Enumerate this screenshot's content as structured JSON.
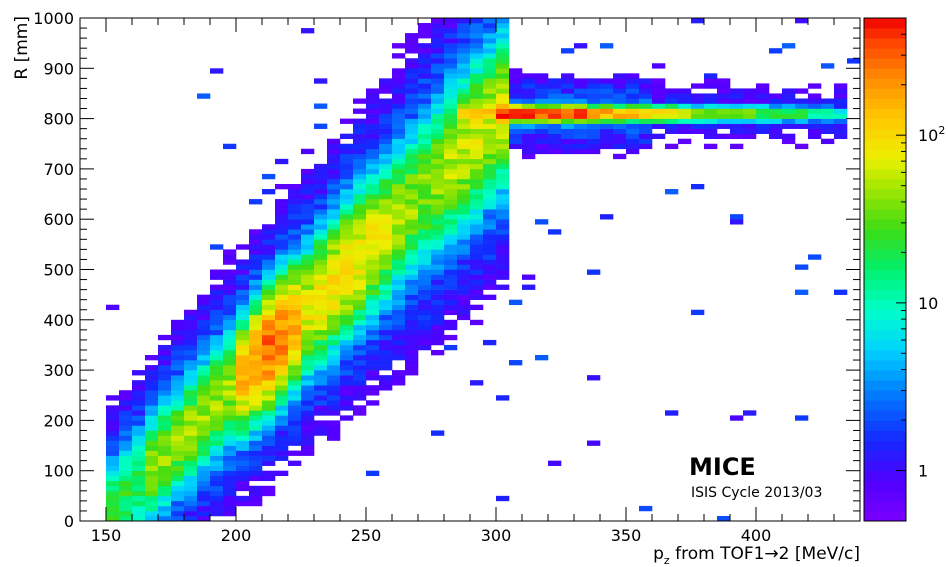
{
  "chart_data": {
    "type": "heatmap",
    "title": "",
    "xlabel": "p_z from TOF1→2 [MeV/c]",
    "ylabel": "R [mm]",
    "xlim": [
      140,
      440
    ],
    "ylim": [
      0,
      1000
    ],
    "x_ticks": [
      "150",
      "200",
      "250",
      "300",
      "350",
      "400"
    ],
    "y_ticks": [
      "0",
      "100",
      "200",
      "300",
      "400",
      "500",
      "600",
      "700",
      "800",
      "900",
      "1000"
    ],
    "colorbar": {
      "scale": "log",
      "range": [
        0.5,
        500
      ],
      "tick_labels": [
        {
          "value": 1,
          "text": "1"
        },
        {
          "value": 10,
          "text": "10"
        },
        {
          "value": 100,
          "text": "10",
          "sup": "2"
        }
      ]
    },
    "bin_width_x": 5,
    "bin_width_y": 10,
    "approx_distribution": {
      "band_1": "dense diagonal band from (155, 40) to (300, 800)",
      "band_2": "horizontal band at R≈810 from p_z≈295 to 435",
      "max_region": "p_z 300–330, R≈810",
      "secondary_max": "p_z 210–220, R≈300–340"
    },
    "annotations": [
      "MICE",
      "ISIS Cycle 2013/03"
    ]
  }
}
